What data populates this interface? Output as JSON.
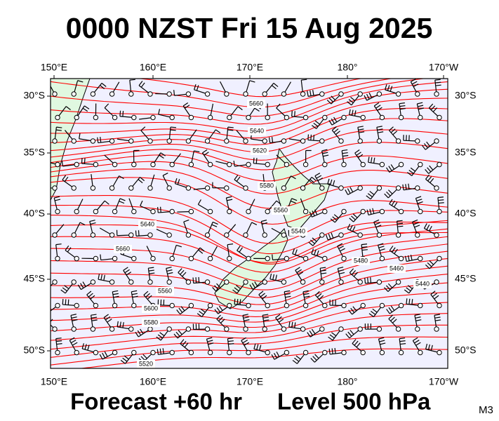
{
  "header": {
    "title": "0000 NZST Fri 15 Aug 2025"
  },
  "axes": {
    "lon_labels": [
      "150°E",
      "160°E",
      "170°E",
      "180°",
      "170°W"
    ],
    "lat_labels": [
      "30°S",
      "35°S",
      "40°S",
      "45°S",
      "50°S"
    ]
  },
  "contour_labels": [
    "5660",
    "5640",
    "5620",
    "5600",
    "5580",
    "5560",
    "5540",
    "5520",
    "5440",
    "5460",
    "5480",
    "5640",
    "5660",
    "5580",
    "5560"
  ],
  "footer": {
    "forecast": "Forecast +60 hr",
    "level": "Level 500 hPa",
    "code": "M3"
  }
}
